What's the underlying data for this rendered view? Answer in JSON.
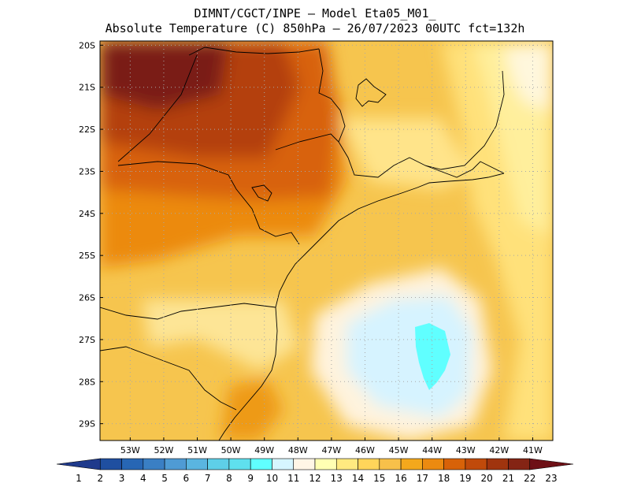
{
  "title": {
    "line1": "DIMNT/CGCT/INPE –  Model Eta05_M01_",
    "line2": "Absolute Temperature (C) 850hPa –  26/07/2023 00UTC fct=132h"
  },
  "map": {
    "lon_range": [
      -53.9,
      -40.4
    ],
    "lat_range": [
      -29.4,
      -19.9
    ],
    "lon_ticks": [
      {
        "value": -53,
        "label": "53W"
      },
      {
        "value": -52,
        "label": "52W"
      },
      {
        "value": -51,
        "label": "51W"
      },
      {
        "value": -50,
        "label": "50W"
      },
      {
        "value": -49,
        "label": "49W"
      },
      {
        "value": -48,
        "label": "48W"
      },
      {
        "value": -47,
        "label": "47W"
      },
      {
        "value": -46,
        "label": "46W"
      },
      {
        "value": -45,
        "label": "45W"
      },
      {
        "value": -44,
        "label": "44W"
      },
      {
        "value": -43,
        "label": "43W"
      },
      {
        "value": -42,
        "label": "42W"
      },
      {
        "value": -41,
        "label": "41W"
      }
    ],
    "lat_ticks": [
      {
        "value": -20,
        "label": "20S"
      },
      {
        "value": -21,
        "label": "21S"
      },
      {
        "value": -22,
        "label": "22S"
      },
      {
        "value": -23,
        "label": "23S"
      },
      {
        "value": -24,
        "label": "24S"
      },
      {
        "value": -25,
        "label": "25S"
      },
      {
        "value": -26,
        "label": "26S"
      },
      {
        "value": -27,
        "label": "27S"
      },
      {
        "value": -28,
        "label": "28S"
      },
      {
        "value": -29,
        "label": "29S"
      }
    ],
    "grid": "dotted"
  },
  "colorbar": {
    "labels": [
      "1",
      "2",
      "3",
      "4",
      "5",
      "6",
      "7",
      "8",
      "9",
      "10",
      "11",
      "12",
      "13",
      "14",
      "15",
      "16",
      "17",
      "18",
      "19",
      "20",
      "21",
      "22",
      "23"
    ],
    "colors": [
      "#1f3a8c",
      "#1f4fa0",
      "#2766b4",
      "#3a7fc4",
      "#4f9bd4",
      "#5ab5e0",
      "#5ecfe8",
      "#5fe0ee",
      "#60ffff",
      "#d6f6ff",
      "#fff6e6",
      "#ffffb3",
      "#ffea80",
      "#ffd55a",
      "#f7c04a",
      "#f4a81c",
      "#ec8a10",
      "#d86208",
      "#c04a0a",
      "#a0340e",
      "#842414",
      "#6e1016"
    ]
  }
}
